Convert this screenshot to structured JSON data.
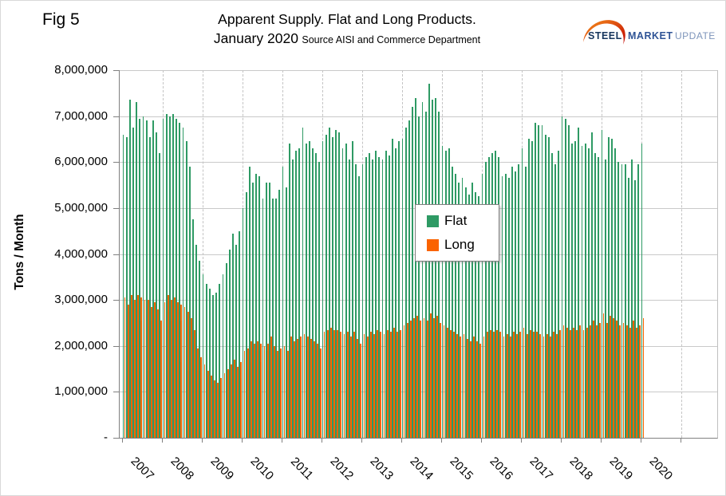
{
  "figure": {
    "fig_label": "Fig 5",
    "title": "Apparent Supply. Flat and Long Products.",
    "subtitle": "January 2020",
    "source_note": "Source AISI and Commerce Department"
  },
  "logo": {
    "word1": "STEEL",
    "word2": "MARKET",
    "word3": "UPDATE",
    "word1_color": "#17365d",
    "word2_color": "#2f5496",
    "word3_color": "#7e95bb",
    "swoosh_color_start": "#f7941d",
    "swoosh_color_end": "#c00000"
  },
  "chart_data": {
    "type": "bar",
    "title": "Apparent Supply. Flat and Long Products.",
    "subtitle": "January 2020",
    "source": "Source AISI and Commerce Department",
    "ylabel": "Tons / Month",
    "ylim": [
      0,
      8000000
    ],
    "ytick_step": 1000000,
    "ytick_labels": [
      "-",
      "1,000,000",
      "2,000,000",
      "3,000,000",
      "4,000,000",
      "5,000,000",
      "6,000,000",
      "7,000,000",
      "8,000,000"
    ],
    "grid": {
      "horizontal": "solid",
      "vertical_years": "dashed"
    },
    "x_unit": "month",
    "x_start": "2007-01",
    "x_end": "2020-01",
    "year_labels": [
      "2007",
      "2008",
      "2009",
      "2010",
      "2011",
      "2012",
      "2013",
      "2014",
      "2015",
      "2016",
      "2017",
      "2018",
      "2019",
      "2020"
    ],
    "legend": {
      "position": "center-right",
      "entries": [
        {
          "label": "Flat",
          "color": "#2e9a64"
        },
        {
          "label": "Long",
          "color": "#fa6300"
        }
      ]
    },
    "series": [
      {
        "name": "Flat",
        "color": "#2e9a64",
        "monthly_values": [
          6600000,
          6550000,
          7350000,
          6750000,
          7300000,
          6950000,
          7000000,
          6900000,
          6550000,
          6900000,
          6650000,
          6200000,
          6950000,
          7050000,
          7000000,
          7050000,
          6950000,
          6850000,
          6750000,
          6450000,
          5900000,
          4750000,
          4200000,
          3850000,
          3550000,
          3350000,
          3250000,
          3100000,
          3150000,
          3350000,
          3550000,
          3800000,
          4100000,
          4450000,
          4200000,
          4500000,
          5000000,
          5350000,
          5900000,
          5550000,
          5750000,
          5700000,
          5200000,
          5550000,
          5550000,
          5200000,
          5200000,
          5400000,
          5900000,
          5450000,
          6400000,
          6050000,
          6250000,
          6300000,
          6750000,
          6400000,
          6450000,
          6300000,
          6200000,
          6000000,
          6450000,
          6600000,
          6750000,
          6550000,
          6700000,
          6650000,
          6300000,
          6400000,
          6050000,
          6450000,
          5950000,
          5700000,
          5950000,
          6100000,
          6200000,
          6050000,
          6250000,
          6100000,
          6050000,
          6250000,
          6150000,
          6500000,
          6300000,
          6450000,
          6500000,
          6750000,
          6900000,
          7200000,
          7400000,
          7000000,
          7300000,
          7100000,
          7700000,
          7350000,
          7400000,
          7100000,
          6350000,
          6250000,
          6300000,
          5900000,
          5750000,
          5550000,
          5650000,
          5450000,
          5300000,
          5550000,
          5350000,
          5250000,
          5750000,
          6000000,
          6100000,
          6200000,
          6250000,
          6100000,
          5700000,
          5750000,
          5650000,
          5900000,
          5800000,
          5950000,
          6300000,
          5900000,
          6500000,
          6450000,
          6850000,
          6800000,
          6800000,
          6600000,
          6550000,
          6200000,
          5950000,
          6250000,
          7000000,
          6950000,
          6800000,
          6400000,
          6450000,
          6750000,
          6350000,
          6400000,
          6300000,
          6650000,
          6200000,
          6100000,
          6700000,
          6050000,
          6550000,
          6500000,
          6300000,
          6000000,
          5950000,
          5950000,
          5650000,
          6050000,
          5600000,
          5950000,
          6400000
        ]
      },
      {
        "name": "Long",
        "color": "#fa6300",
        "monthly_values": [
          3050000,
          2900000,
          3100000,
          3000000,
          3100000,
          3050000,
          3000000,
          3000000,
          2850000,
          2950000,
          2800000,
          2550000,
          2950000,
          3100000,
          3000000,
          3050000,
          2950000,
          2900000,
          2850000,
          2750000,
          2600000,
          2350000,
          1950000,
          1750000,
          1600000,
          1450000,
          1350000,
          1250000,
          1200000,
          1300000,
          1400000,
          1500000,
          1600000,
          1700000,
          1550000,
          1650000,
          1900000,
          1950000,
          2100000,
          2050000,
          2100000,
          2050000,
          2000000,
          2050000,
          2200000,
          2000000,
          1900000,
          1950000,
          2000000,
          1900000,
          2200000,
          2100000,
          2150000,
          2200000,
          2250000,
          2200000,
          2150000,
          2100000,
          2050000,
          1950000,
          2300000,
          2350000,
          2400000,
          2350000,
          2350000,
          2300000,
          2250000,
          2300000,
          2200000,
          2300000,
          2150000,
          2050000,
          2250000,
          2200000,
          2300000,
          2250000,
          2350000,
          2300000,
          2250000,
          2350000,
          2300000,
          2400000,
          2300000,
          2350000,
          2450000,
          2500000,
          2550000,
          2600000,
          2650000,
          2550000,
          2600000,
          2550000,
          2700000,
          2600000,
          2650000,
          2500000,
          2450000,
          2400000,
          2350000,
          2300000,
          2250000,
          2200000,
          2250000,
          2150000,
          2100000,
          2200000,
          2100000,
          2050000,
          2200000,
          2300000,
          2350000,
          2300000,
          2350000,
          2300000,
          2200000,
          2250000,
          2200000,
          2300000,
          2250000,
          2300000,
          2400000,
          2250000,
          2350000,
          2300000,
          2300000,
          2250000,
          2200000,
          2250000,
          2200000,
          2300000,
          2250000,
          2350000,
          2450000,
          2400000,
          2350000,
          2400000,
          2350000,
          2450000,
          2350000,
          2400000,
          2450000,
          2550000,
          2450000,
          2500000,
          2700000,
          2500000,
          2650000,
          2600000,
          2550000,
          2450000,
          2500000,
          2450000,
          2400000,
          2550000,
          2400000,
          2450000,
          2600000
        ]
      }
    ]
  }
}
